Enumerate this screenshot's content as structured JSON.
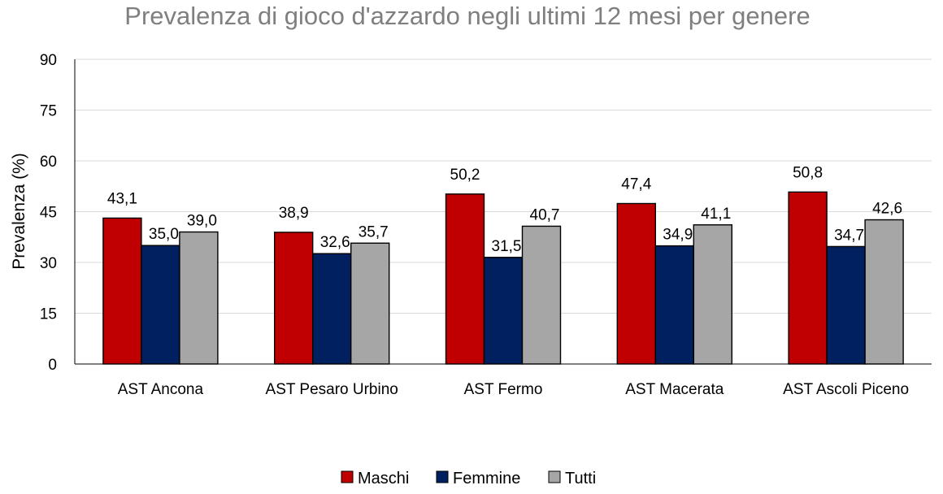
{
  "chart_data": {
    "type": "bar",
    "title": "Prevalenza di gioco d'azzardo negli ultimi 12 mesi per genere",
    "xlabel": "",
    "ylabel": "Prevalenza (%)",
    "ylim": [
      0,
      90
    ],
    "yticks": [
      0,
      15,
      30,
      45,
      60,
      75,
      90
    ],
    "grid": true,
    "legend_position": "bottom",
    "categories": [
      "AST Ancona",
      "AST Pesaro Urbino",
      "AST Fermo",
      "AST Macerata",
      "AST Ascoli Piceno"
    ],
    "series": [
      {
        "name": "Maschi",
        "color": "#c00000",
        "values": [
          43.1,
          38.9,
          50.2,
          47.4,
          50.8
        ],
        "labels": [
          "43,1",
          "38,9",
          "50,2",
          "47,4",
          "50,8"
        ]
      },
      {
        "name": "Femmine",
        "color": "#002060",
        "values": [
          35.0,
          32.6,
          31.5,
          34.9,
          34.7
        ],
        "labels": [
          "35,0",
          "32,6",
          "31,5",
          "34,9",
          "34,7"
        ]
      },
      {
        "name": "Tutti",
        "color": "#a6a6a6",
        "values": [
          39.0,
          35.7,
          40.7,
          41.1,
          42.6
        ],
        "labels": [
          "39,0",
          "35,7",
          "40,7",
          "41,1",
          "42,6"
        ]
      }
    ]
  }
}
